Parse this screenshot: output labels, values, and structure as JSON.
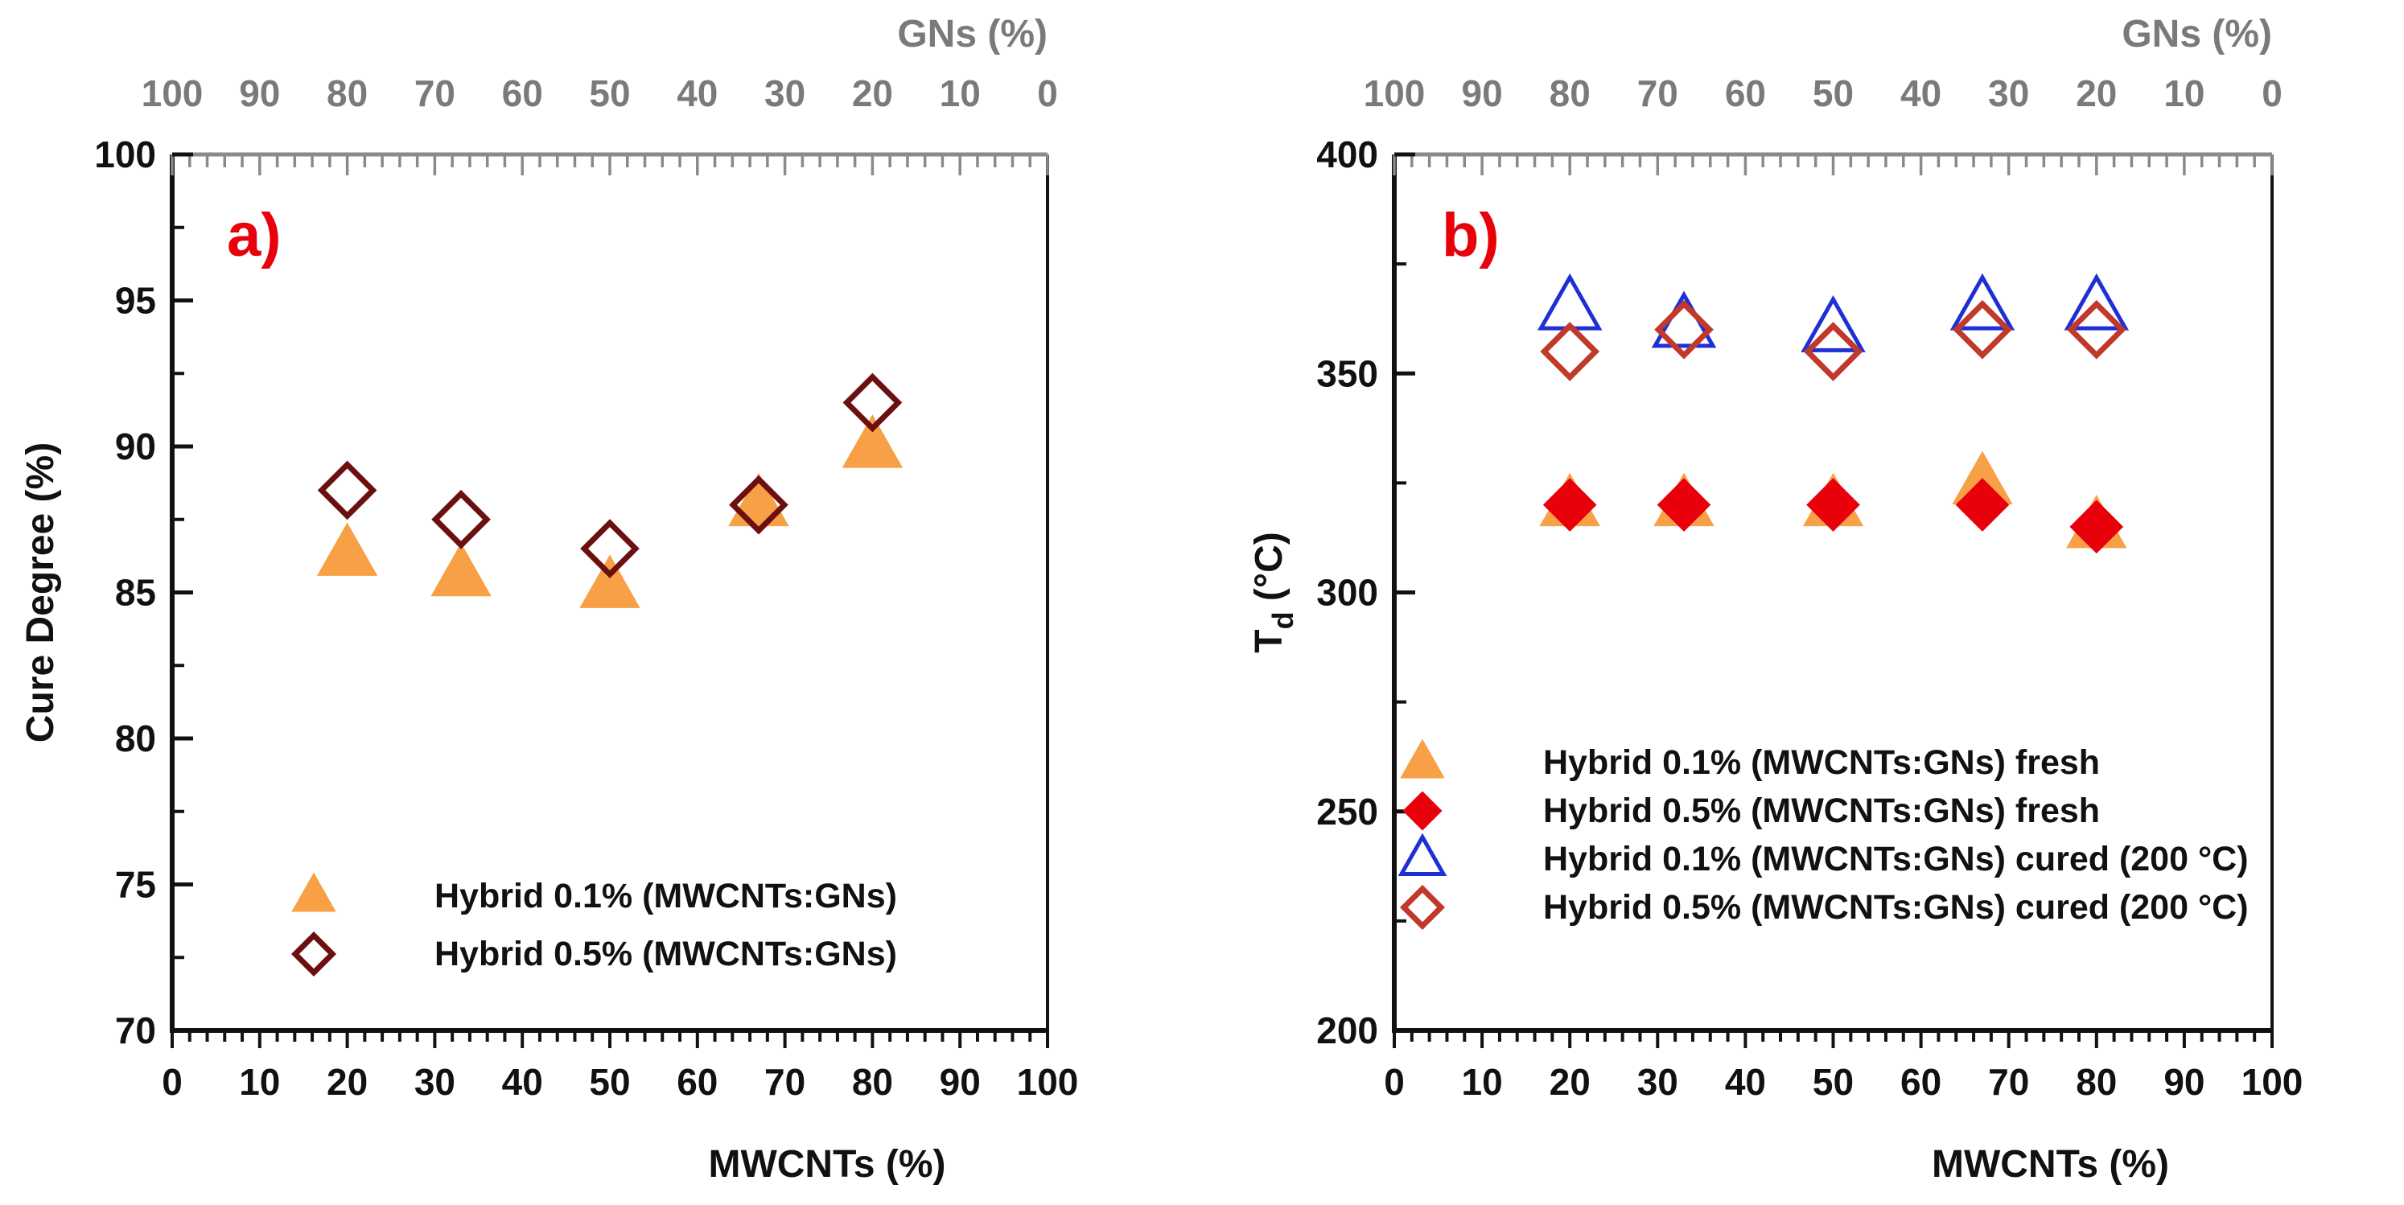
{
  "chart_data": [
    {
      "type": "scatter",
      "panel_label": "a)",
      "xlabel": "MWCNTs (%)",
      "ylabel": "Cure Degree (%)",
      "top_xlabel": "GNs (%)",
      "xlim": [
        0,
        100
      ],
      "ylim": [
        70,
        100
      ],
      "x_ticks": [
        0,
        10,
        20,
        30,
        40,
        50,
        60,
        70,
        80,
        90,
        100
      ],
      "x_tick_labels": [
        "0",
        "10",
        "20",
        "30",
        "40",
        "50",
        "60",
        "70",
        "80",
        "90",
        "100"
      ],
      "y_ticks": [
        70,
        75,
        80,
        85,
        90,
        95,
        100
      ],
      "y_tick_labels": [
        "70",
        "75",
        "80",
        "85",
        "90",
        "95",
        "100"
      ],
      "top_tick_labels": [
        "100",
        "90",
        "80",
        "70",
        "60",
        "50",
        "40",
        "30",
        "20",
        "10",
        "0"
      ],
      "legend_position": "bottom-right",
      "series": [
        {
          "name": "Hybrid 0.1% (MWCNTs:GNs)",
          "marker": "triangle-filled",
          "color": "#f7a046",
          "x": [
            20,
            33,
            50,
            67,
            80
          ],
          "y": [
            86.3,
            85.6,
            85.2,
            88.0,
            90.0
          ]
        },
        {
          "name": "Hybrid 0.5% (MWCNTs:GNs)",
          "marker": "diamond-open",
          "color": "#6b0f0f",
          "x": [
            20,
            33,
            50,
            67,
            80
          ],
          "y": [
            88.5,
            87.5,
            86.5,
            88.0,
            91.5
          ]
        }
      ]
    },
    {
      "type": "scatter",
      "panel_label": "b)",
      "xlabel": "MWCNTs (%)",
      "ylabel": "Td (°C)",
      "ylabel_main": "T",
      "ylabel_sub": "d",
      "ylabel_unit": " (°C)",
      "top_xlabel": "GNs (%)",
      "xlim": [
        0,
        100
      ],
      "ylim": [
        200,
        400
      ],
      "x_ticks": [
        0,
        10,
        20,
        30,
        40,
        50,
        60,
        70,
        80,
        90,
        100
      ],
      "x_tick_labels": [
        "0",
        "10",
        "20",
        "30",
        "40",
        "50",
        "60",
        "70",
        "80",
        "90",
        "100"
      ],
      "y_ticks": [
        200,
        250,
        300,
        350,
        400
      ],
      "y_tick_labels": [
        "200",
        "250",
        "300",
        "350",
        "400"
      ],
      "top_tick_labels": [
        "100",
        "90",
        "80",
        "70",
        "60",
        "50",
        "40",
        "30",
        "20",
        "10",
        "0"
      ],
      "legend_position": "bottom-left",
      "series": [
        {
          "name": "Hybrid 0.1% (MWCNTs:GNs) fresh",
          "marker": "triangle-filled",
          "color": "#f7a046",
          "x": [
            20,
            33,
            50,
            67,
            80
          ],
          "y": [
            320,
            320,
            320,
            325,
            315
          ]
        },
        {
          "name": "Hybrid 0.5% (MWCNTs:GNs) fresh",
          "marker": "diamond-filled",
          "color": "#e8000b",
          "x": [
            20,
            33,
            50,
            67,
            80
          ],
          "y": [
            320,
            320,
            320,
            320,
            315
          ]
        },
        {
          "name": "Hybrid 0.1% (MWCNTs:GNs) cured (200 °C)",
          "marker": "triangle-open",
          "color": "#1f2fd6",
          "x": [
            20,
            33,
            50,
            67,
            80
          ],
          "y": [
            365,
            361,
            360,
            365,
            365
          ]
        },
        {
          "name": "Hybrid 0.5% (MWCNTs:GNs) cured (200 °C)",
          "marker": "diamond-open",
          "color": "#c0392b",
          "x": [
            20,
            33,
            50,
            67,
            80
          ],
          "y": [
            355,
            360,
            355,
            360,
            360
          ]
        }
      ]
    }
  ]
}
